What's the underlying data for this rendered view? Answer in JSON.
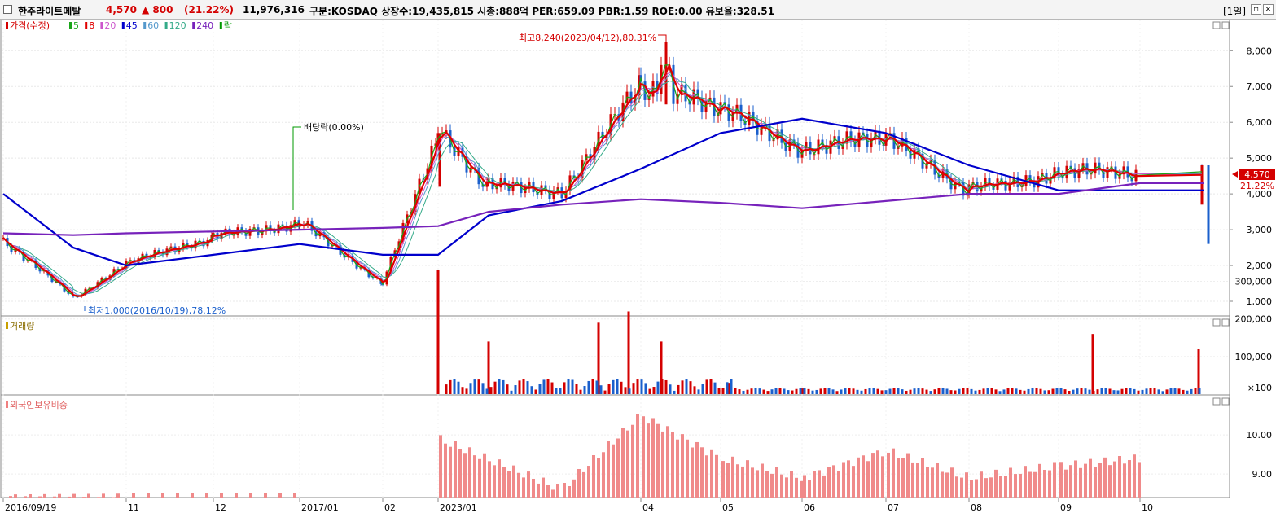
{
  "header": {
    "name": "한주라이트메탈",
    "price": "4,570",
    "change": "▲ 800",
    "change_pct": "(21.22%)",
    "volume": "11,976,316",
    "info": "구분:KOSDAQ 상장수:19,435,815 시총:888억 PER:659.09 PBR:1.59 ROE:0.00 유보율:328.51",
    "period": "[1일]",
    "colors": {
      "up": "#d40000",
      "down": "#1a5fcc"
    }
  },
  "panels": {
    "price": {
      "legend": [
        {
          "label": "가격(수정)",
          "color": "#d40000"
        },
        {
          "label": "5",
          "color": "#1aa61a"
        },
        {
          "label": "8",
          "color": "#e00000"
        },
        {
          "label": "20",
          "color": "#cc55cc"
        },
        {
          "label": "45",
          "color": "#0000cc"
        },
        {
          "label": "60",
          "color": "#5599cc"
        },
        {
          "label": "120",
          "color": "#33aa88"
        },
        {
          "label": "240",
          "color": "#7722bb"
        },
        {
          "label": "락",
          "color": "#009900"
        }
      ],
      "y_ticks": [
        "8,000",
        "7,000",
        "6,000",
        "5,000",
        "4,000",
        "3,000",
        "2,000",
        "1,000"
      ],
      "price_tag": "4,570",
      "pct_tag": "21.22%",
      "annotations": {
        "high": "최고8,240(2023/04/12),80.31%",
        "low": "최저1,000(2016/10/19),78.12%",
        "dividend": "배당락(0.00%)"
      }
    },
    "volume": {
      "legend": "거래량",
      "y_ticks": [
        "300,000",
        "200,000",
        "100,000",
        "×100"
      ]
    },
    "foreign": {
      "legend": "외국인보유비중",
      "y_ticks": [
        "10.00",
        "9.00"
      ]
    }
  },
  "x_axis": {
    "labels": [
      "2016/09/19",
      "11",
      "12",
      "2017/01",
      "02",
      "2023/01",
      "04",
      "05",
      "06",
      "07",
      "08",
      "09",
      "10"
    ]
  },
  "chart_data": [
    {
      "type": "line",
      "title": "가격(수정)",
      "x": [
        "2016/09",
        "2016/10",
        "2016/11",
        "2016/12",
        "2017/01",
        "2017/02",
        "2023/01",
        "2023/02",
        "2023/03",
        "2023/04",
        "2023/05",
        "2023/06",
        "2023/07",
        "2023/08",
        "2023/09",
        "2023/10"
      ],
      "series": [
        {
          "name": "가격(수정)",
          "values": [
            2700,
            1100,
            2050,
            2800,
            3200,
            1500,
            5700,
            4200,
            4100,
            7000,
            6300,
            5300,
            5500,
            4100,
            4600,
            4570
          ]
        },
        {
          "name": "45",
          "values": [
            4000,
            2500,
            2000,
            2300,
            2600,
            2300,
            2300,
            3400,
            3800,
            4700,
            5700,
            6100,
            5700,
            4800,
            4100,
            4100
          ]
        },
        {
          "name": "240",
          "values": [
            2900,
            2850,
            2900,
            2950,
            3000,
            3050,
            3100,
            3500,
            3700,
            3850,
            3750,
            3600,
            3800,
            4000,
            4000,
            4300
          ]
        }
      ],
      "ylim": [
        1000,
        8500
      ],
      "high": 8240,
      "low": 1000
    },
    {
      "type": "bar",
      "title": "거래량",
      "x": [
        "2023/01",
        "2023/02",
        "2023/03",
        "2023/04",
        "2023/05",
        "2023/06",
        "2023/07",
        "2023/08",
        "2023/09",
        "2023/10"
      ],
      "values": [
        330000,
        140000,
        190000,
        220000,
        140000,
        30000,
        15000,
        10000,
        160000,
        120000
      ],
      "ylim": [
        0,
        350000
      ]
    },
    {
      "type": "bar",
      "title": "외국인보유비중",
      "x": [
        "2016/09",
        "2016/11",
        "2017/01",
        "2023/01",
        "2023/03",
        "2023/04",
        "2023/05",
        "2023/06",
        "2023/07",
        "2023/08",
        "2023/09",
        "2023/10"
      ],
      "values": [
        8.4,
        8.4,
        8.4,
        9.9,
        8.6,
        10.5,
        9.4,
        8.9,
        9.6,
        8.9,
        9.2,
        9.4
      ],
      "ylim": [
        8.4,
        11.0
      ]
    }
  ]
}
